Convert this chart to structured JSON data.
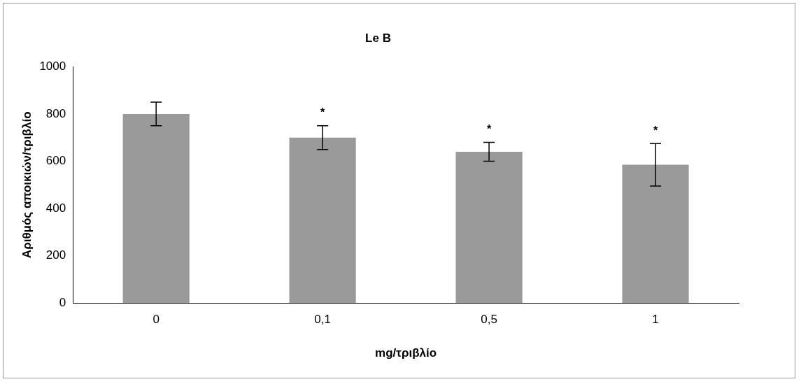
{
  "chart_data": {
    "type": "bar",
    "title": "Le B",
    "xlabel": "mg/τριβλίο",
    "ylabel": "Αριθμός αποικιών/τριβλίο",
    "categories": [
      "0",
      "0,1",
      "0,5",
      "1"
    ],
    "values": [
      800,
      700,
      640,
      585
    ],
    "errors": [
      50,
      50,
      40,
      90
    ],
    "color": "#9a9a9a",
    "ylim": [
      0,
      1000
    ],
    "yticks": [
      0,
      200,
      400,
      600,
      800,
      1000
    ],
    "grid": false,
    "legend": false,
    "annotations": [
      {
        "text": "*",
        "x": "0,1",
        "y": 750
      },
      {
        "text": "*",
        "x": "0,5",
        "y": 680
      },
      {
        "text": "*",
        "x": "1",
        "y": 675
      }
    ]
  }
}
